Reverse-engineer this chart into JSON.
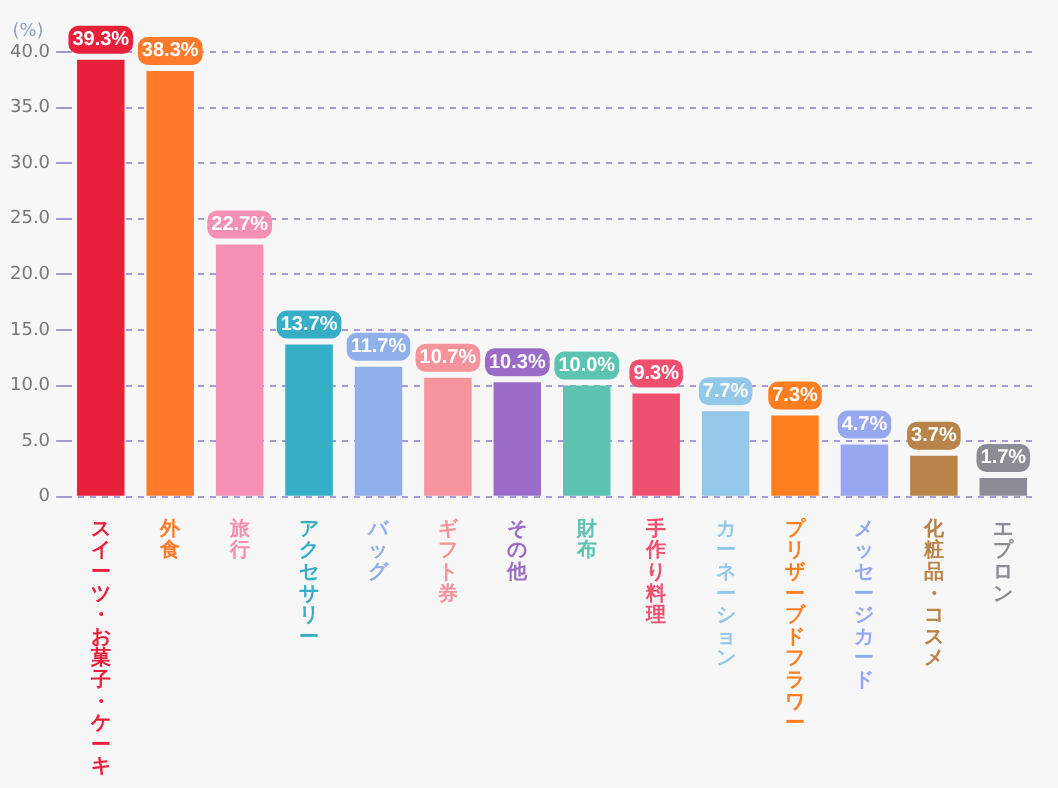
{
  "chart_data": {
    "type": "bar",
    "ylabel": "(%)",
    "categories": [
      "スイーツ・お菓子・ケーキ",
      "外食",
      "旅行",
      "アクセサリー",
      "バッグ",
      "ギフト券",
      "その他",
      "財布",
      "手作り料理",
      "カーネーション",
      "プリザーブドフラワー",
      "メッセージカード",
      "化粧品・コスメ",
      "エプロン"
    ],
    "values": [
      39.3,
      38.3,
      22.7,
      13.7,
      11.7,
      10.7,
      10.3,
      10.0,
      9.3,
      7.7,
      7.3,
      4.7,
      3.7,
      1.7
    ],
    "value_labels": [
      "39.3%",
      "38.3%",
      "22.7%",
      "13.7%",
      "11.7%",
      "10.7%",
      "10.3%",
      "10.0%",
      "9.3%",
      "7.7%",
      "7.3%",
      "4.7%",
      "3.7%",
      "1.7%"
    ],
    "colors": [
      "#e8203c",
      "#ff7a2a",
      "#f590b4",
      "#35aec6",
      "#8fb0e8",
      "#f5949c",
      "#9a6cc8",
      "#5cc4b0",
      "#f05070",
      "#94c8e8",
      "#ff7f20",
      "#98a8f0",
      "#b8844a",
      "#8c8c94"
    ],
    "ylim": [
      0,
      40
    ],
    "yticks": [
      0,
      {
        "value": 5,
        "label": "5.0"
      },
      {
        "value": 10,
        "label": "10.0"
      },
      {
        "value": 15,
        "label": "15.0"
      },
      {
        "value": 20,
        "label": "20.0"
      },
      {
        "value": 25,
        "label": "25.0"
      },
      {
        "value": 30,
        "label": "30.0"
      },
      {
        "value": 35,
        "label": "35.0"
      },
      {
        "value": 40,
        "label": "40.0"
      }
    ],
    "grid": "y"
  }
}
